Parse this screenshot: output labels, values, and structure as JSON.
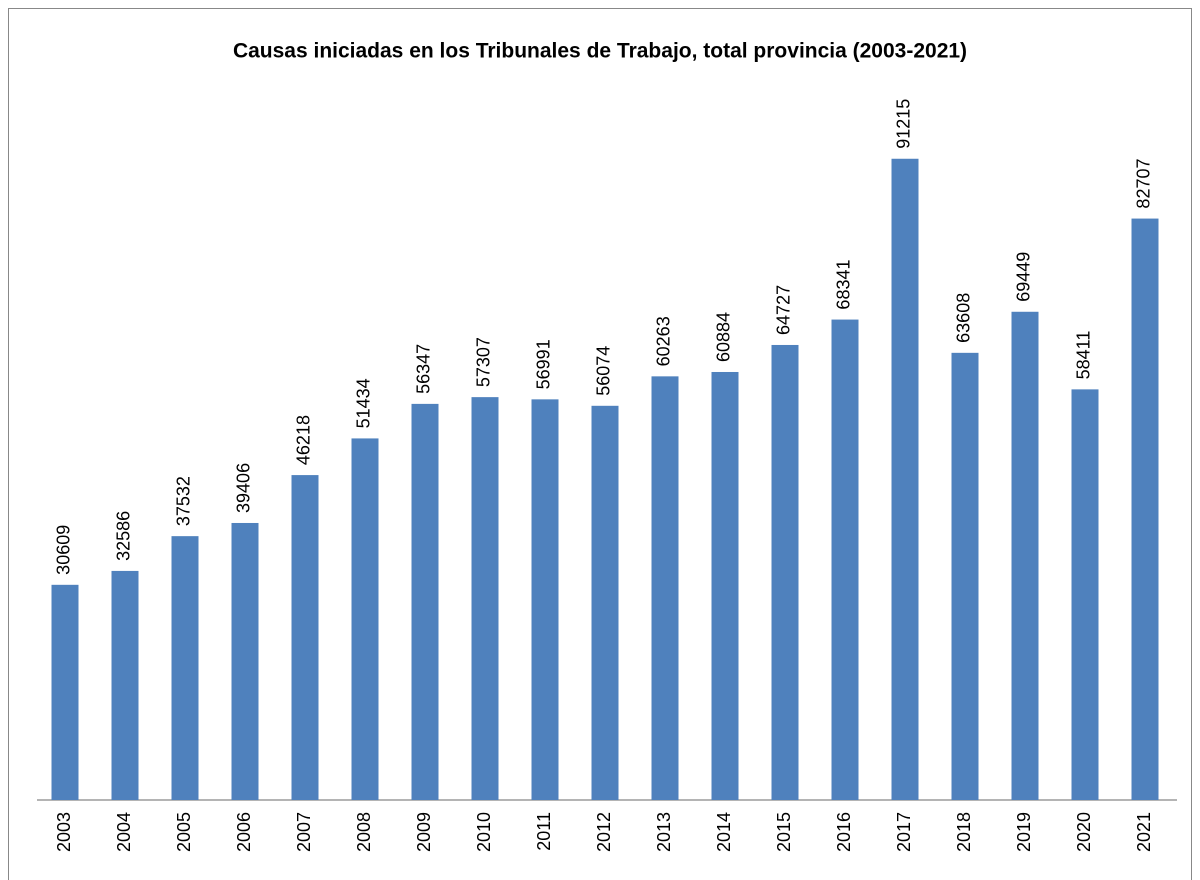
{
  "chart_data": {
    "type": "bar",
    "title": "Causas iniciadas en los Tribunales de Trabajo, total provincia (2003-2021)",
    "categories": [
      "2003",
      "2004",
      "2005",
      "2006",
      "2007",
      "2008",
      "2009",
      "2010",
      "2011",
      "2012",
      "2013",
      "2014",
      "2015",
      "2016",
      "2017",
      "2018",
      "2019",
      "2020",
      "2021"
    ],
    "values": [
      30609,
      32586,
      37532,
      39406,
      46218,
      51434,
      56347,
      57307,
      56991,
      56074,
      60263,
      60884,
      64727,
      68341,
      91215,
      63608,
      69449,
      58411,
      82707
    ],
    "color": "#4f81bd",
    "ylim": [
      0,
      100000
    ]
  }
}
